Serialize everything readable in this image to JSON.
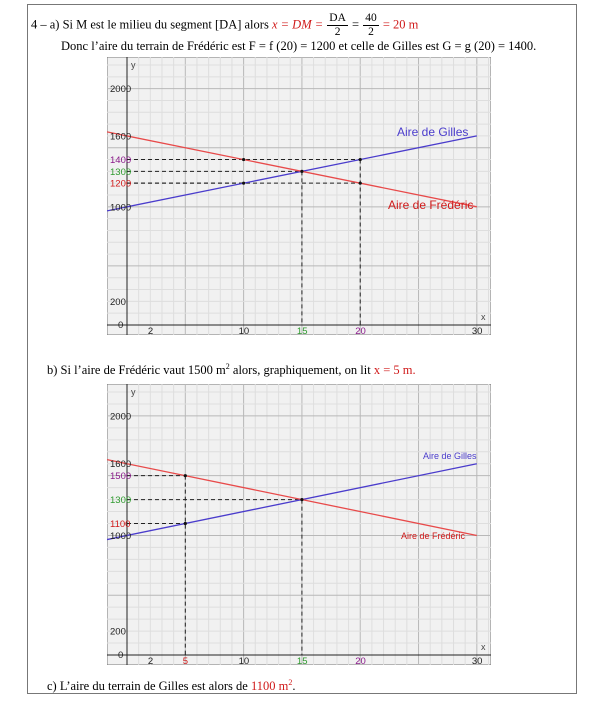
{
  "line_a": {
    "prefix": "4 – a) Si M est le milieu du segment [DA] alors",
    "x_eq": "x = DM =",
    "frac1_num": "DA",
    "frac1_den": "2",
    "eq_sign": "=",
    "frac2_num": "40",
    "frac2_den": "2",
    "result": "= 20 m"
  },
  "line_a2": "Donc l’aire du terrain de Frédéric est F = f (20) = 1200  et celle de Gilles est G = g (20) = 1400.",
  "line_b": {
    "text": "b) Si l’aire de Frédéric vaut 1500 m",
    "sup": "2",
    "text2": " alors, graphiquement, on lit ",
    "answer": "x = 5 m."
  },
  "line_c": {
    "text": "c) L’aire du terrain de Gilles est alors de ",
    "answer": "1100 m",
    "sup": "2",
    "end": "."
  },
  "colors": {
    "gilles": "#4a3ccc",
    "frederic": "#e84a4a",
    "answer_red": "#d01a1a",
    "purple": "#8a1a8a",
    "green": "#2e9a2e"
  },
  "chart_data": [
    {
      "type": "line",
      "x_range": [
        0,
        31
      ],
      "y_range": [
        0,
        2200
      ],
      "x_axis_name": "x",
      "y_axis_name": "y",
      "x_ticks": [
        "0",
        "2",
        "10",
        "15",
        "20",
        "30"
      ],
      "y_ticks": [
        "200",
        "1000",
        "1200",
        "1300",
        "1400",
        "1600",
        "2000"
      ],
      "series": [
        {
          "name": "Aire de Gilles",
          "x": [
            0,
            30
          ],
          "y": [
            1000,
            1600
          ]
        },
        {
          "name": "Aire de Frédéric",
          "x": [
            0,
            30
          ],
          "y": [
            1600,
            1000
          ]
        }
      ],
      "highlight_x": [
        15,
        20
      ],
      "highlight_points": [
        [
          15,
          1300
        ],
        [
          20,
          1400
        ],
        [
          20,
          1200
        ],
        [
          10,
          1200
        ],
        [
          10,
          1400
        ]
      ],
      "legend_gilles": "Aire de Gilles",
      "legend_frederic": "Aire de Frédéric"
    },
    {
      "type": "line",
      "x_range": [
        0,
        31
      ],
      "y_range": [
        0,
        2200
      ],
      "x_axis_name": "x",
      "y_axis_name": "y",
      "x_ticks": [
        "0",
        "2",
        "5",
        "10",
        "15",
        "20",
        "30"
      ],
      "y_ticks": [
        "200",
        "1000",
        "1100",
        "1300",
        "1500",
        "1600",
        "2000"
      ],
      "series": [
        {
          "name": "Aire de Gilles",
          "x": [
            0,
            30
          ],
          "y": [
            1000,
            1600
          ]
        },
        {
          "name": "Aire de Frédéric",
          "x": [
            0,
            30
          ],
          "y": [
            1600,
            1000
          ]
        }
      ],
      "highlight_x": [
        5,
        15
      ],
      "highlight_points": [
        [
          5,
          1500
        ],
        [
          5,
          1100
        ],
        [
          15,
          1300
        ]
      ],
      "legend_gilles": "Aire de Gilles",
      "legend_frederic": "Aire de Frédéric"
    }
  ]
}
